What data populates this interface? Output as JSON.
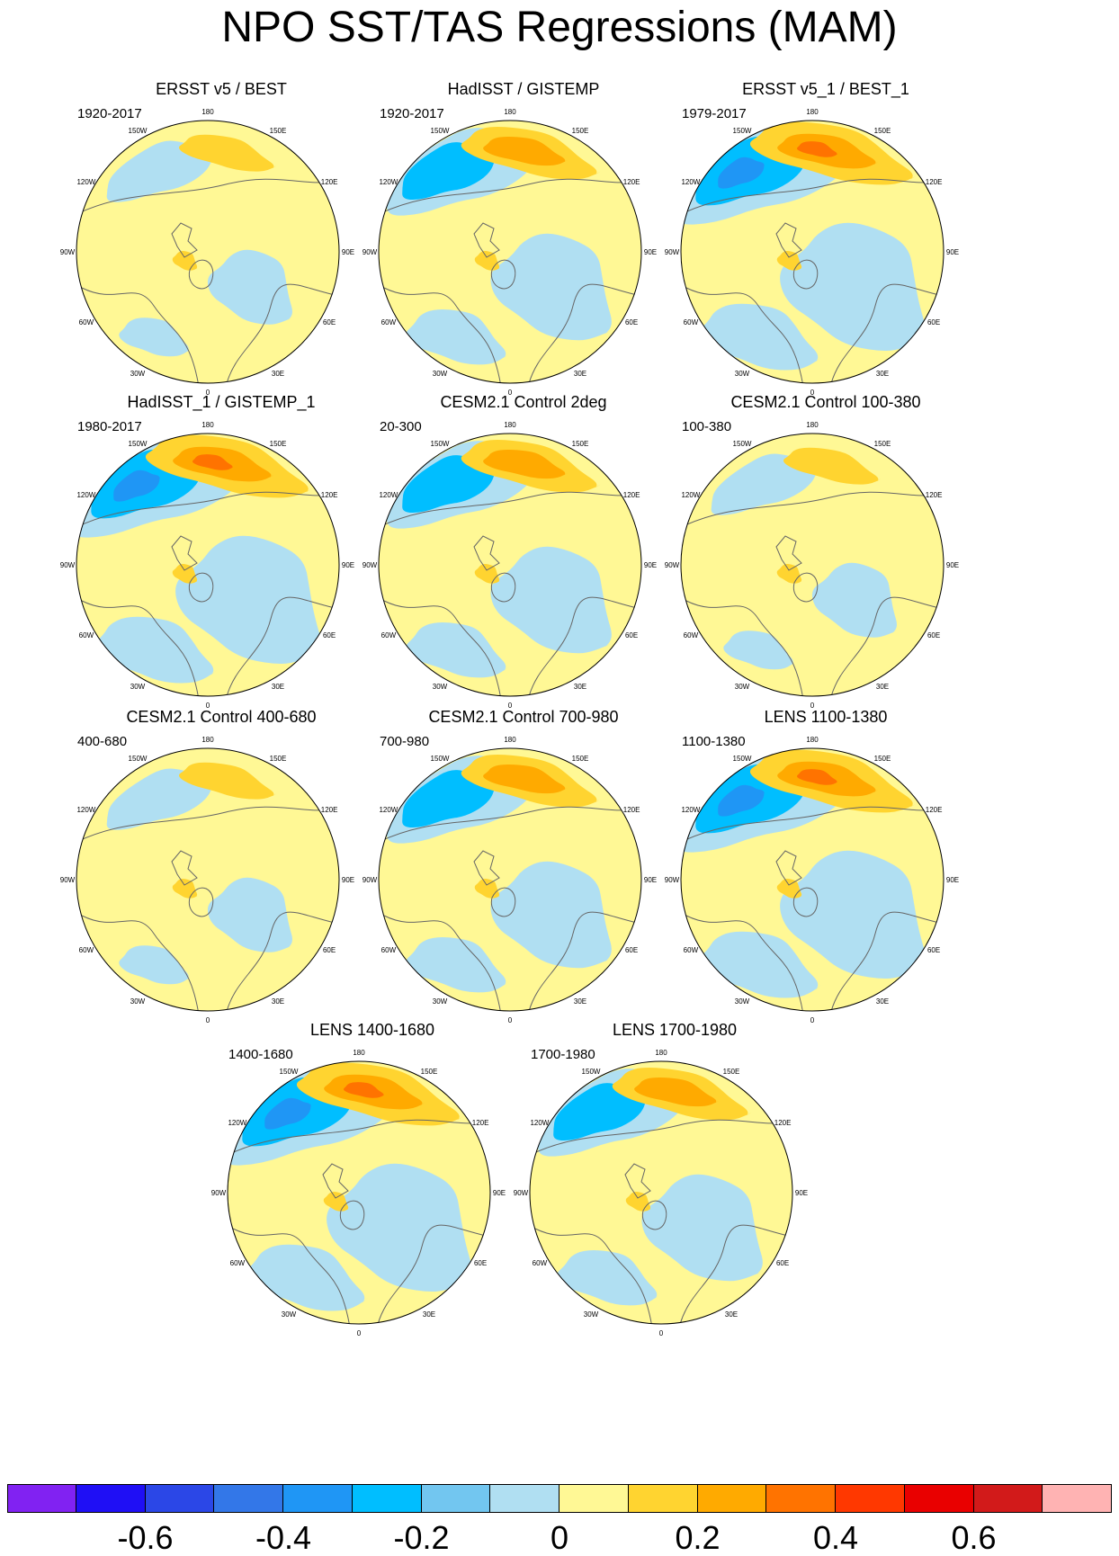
{
  "title": "NPO SST/TAS Regressions (MAM)",
  "lon_labels": [
    "180",
    "150E",
    "120E",
    "90E",
    "60E",
    "30E",
    "0",
    "30W",
    "60W",
    "90W",
    "120W",
    "150W"
  ],
  "panels": [
    {
      "title": "ERSST v5 / BEST",
      "period": "1920-2017",
      "pattern": "weak"
    },
    {
      "title": "HadISST / GISTEMP",
      "period": "1920-2017",
      "pattern": "moderate"
    },
    {
      "title": "ERSST v5_1 / BEST_1",
      "period": "1979-2017",
      "pattern": "strong"
    },
    {
      "title": "HadISST_1 / GISTEMP_1",
      "period": "1980-2017",
      "pattern": "strong"
    },
    {
      "title": "CESM2.1 Control 2deg",
      "period": "20-300",
      "pattern": "moderate"
    },
    {
      "title": "CESM2.1 Control 100-380",
      "period": "100-380",
      "pattern": "weak"
    },
    {
      "title": "CESM2.1 Control 400-680",
      "period": "400-680",
      "pattern": "weak"
    },
    {
      "title": "CESM2.1 Control 700-980",
      "period": "700-980",
      "pattern": "moderate"
    },
    {
      "title": "LENS 1100-1380",
      "period": "1100-1380",
      "pattern": "strong"
    },
    {
      "title": "LENS 1400-1680",
      "period": "1400-1680",
      "pattern": "strong"
    },
    {
      "title": "LENS 1700-1980",
      "period": "1700-1980",
      "pattern": "moderate"
    }
  ],
  "colorbar": {
    "colors": [
      "#8122f2",
      "#1f0ff5",
      "#2b47e7",
      "#3377e8",
      "#1f96f5",
      "#00beff",
      "#72c6f0",
      "#b0dff2",
      "#fff895",
      "#ffd430",
      "#ffaa00",
      "#ff7300",
      "#ff3800",
      "#e90000",
      "#d21a1a",
      "#ffb3b3"
    ],
    "tick_values": [
      -0.6,
      -0.4,
      -0.2,
      0,
      0.2,
      0.4,
      0.6
    ],
    "tick_labels": [
      "-0.6",
      "-0.4",
      "-0.2",
      "0",
      "0.2",
      "0.4",
      "0.6"
    ]
  }
}
